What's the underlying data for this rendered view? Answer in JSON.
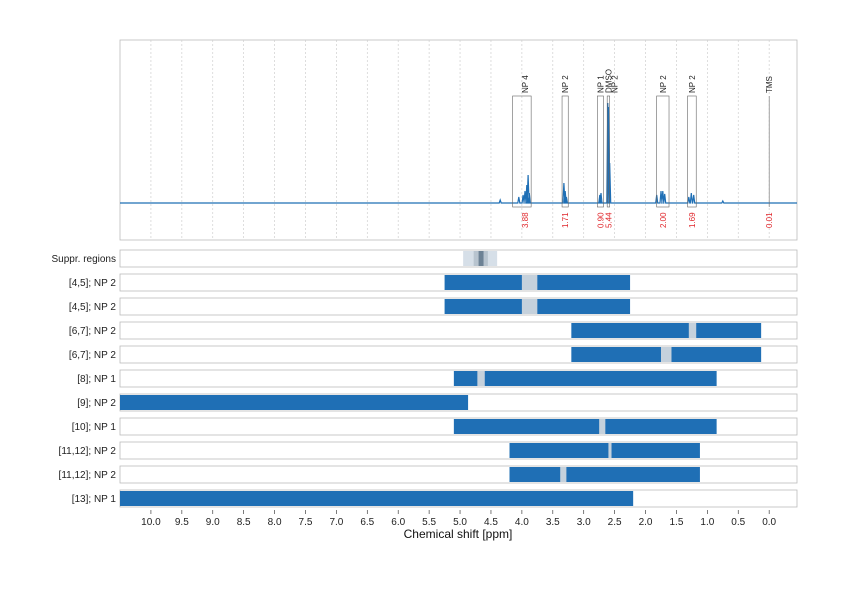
{
  "chart_data": {
    "type": "nmr-spectrum-with-bars",
    "xlabel": "Chemical shift [ppm]",
    "xlim": [
      10.5,
      -0.45
    ],
    "x_ticks": [
      "10.0",
      "9.5",
      "9.0",
      "8.5",
      "8.0",
      "7.5",
      "7.0",
      "6.5",
      "6.0",
      "5.5",
      "5.0",
      "4.5",
      "4.0",
      "3.5",
      "3.0",
      "2.5",
      "2.0",
      "1.5",
      "1.0",
      "0.5",
      "0.0"
    ],
    "x_tick_values": [
      10.0,
      9.5,
      9.0,
      8.5,
      8.0,
      7.5,
      7.0,
      6.5,
      6.0,
      5.5,
      5.0,
      4.5,
      4.0,
      3.5,
      3.0,
      2.5,
      2.0,
      1.5,
      1.0,
      0.5,
      0.0
    ],
    "colors": {
      "bar": "#1f6fb5",
      "spectrum": "#1f6fb5",
      "gap": "#c5d1dc",
      "row_bg": "#ffffff",
      "suppr_light": "#d6dfe8",
      "suppr_mid": "#b8c4cf",
      "suppr_dark": "#6d8295",
      "integral": "#e0262b"
    },
    "peaks": [
      {
        "label": "NP 4",
        "box": [
          4.15,
          3.85
        ],
        "integral": "3.88",
        "x": 3.95
      },
      {
        "label": "NP 2",
        "box": [
          3.35,
          3.25
        ],
        "integral": "1.71",
        "x": 3.3
      },
      {
        "label": "NP 1",
        "box": [
          2.78,
          2.68
        ],
        "integral": "0.90",
        "x": 2.73
      },
      {
        "label": "DMSO",
        "box": [
          2.62,
          2.58
        ],
        "integral": "5.44",
        "x": 2.6
      },
      {
        "label": "NP 2",
        "box": null,
        "integral": null,
        "x": 2.5
      },
      {
        "label": "NP 2",
        "box": [
          1.82,
          1.62
        ],
        "integral": "2.00",
        "x": 1.72
      },
      {
        "label": "NP 2",
        "box": [
          1.32,
          1.18
        ],
        "integral": "1.69",
        "x": 1.25
      },
      {
        "label": "TMS",
        "box": null,
        "integral": "0.01",
        "x": 0.0
      }
    ],
    "suppression": {
      "label": "Suppr. regions",
      "light": [
        4.95,
        4.4
      ],
      "mid": [
        4.78,
        4.55
      ],
      "dark": [
        4.7,
        4.62
      ]
    },
    "rows": [
      {
        "label": "[4,5]; NP 2",
        "range": [
          5.25,
          2.25
        ],
        "gap": [
          4.0,
          3.75
        ]
      },
      {
        "label": "[4,5]; NP 2",
        "range": [
          5.25,
          2.25
        ],
        "gap": [
          4.0,
          3.75
        ]
      },
      {
        "label": "[6,7]; NP 2",
        "range": [
          3.2,
          0.13
        ],
        "gap": [
          1.3,
          1.18
        ]
      },
      {
        "label": "[6,7]; NP 2",
        "range": [
          3.2,
          0.13
        ],
        "gap": [
          1.75,
          1.58
        ]
      },
      {
        "label": "[8]; NP 1",
        "range": [
          5.1,
          0.85
        ],
        "gap": [
          4.72,
          4.6
        ]
      },
      {
        "label": "[9]; NP 2",
        "range": [
          10.5,
          4.87
        ],
        "gap": null
      },
      {
        "label": "[10]; NP 1",
        "range": [
          5.1,
          0.85
        ],
        "gap": [
          2.75,
          2.65
        ]
      },
      {
        "label": "[11,12]; NP 2",
        "range": [
          4.2,
          1.12
        ],
        "gap": [
          2.6,
          2.55
        ]
      },
      {
        "label": "[11,12]; NP 2",
        "range": [
          4.2,
          1.12
        ],
        "gap": [
          3.38,
          3.28
        ]
      },
      {
        "label": "[13]; NP 1",
        "range": [
          10.5,
          2.2
        ],
        "gap": null
      }
    ]
  }
}
